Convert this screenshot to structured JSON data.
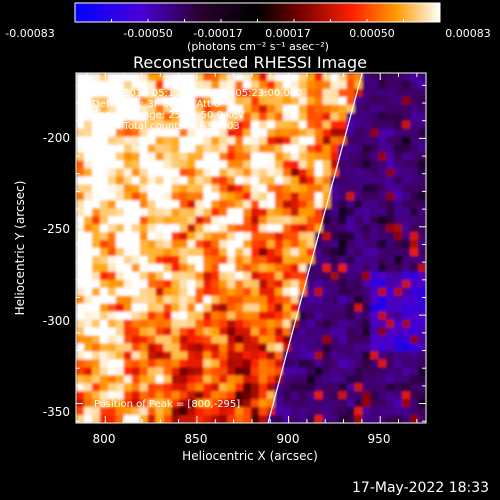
{
  "colorbar": {
    "tick_labels": [
      "-0.00083",
      "-0.00050",
      "-0.00017",
      "0.00017",
      "0.00050",
      "0.00083"
    ],
    "unit_label": "(photons cm⁻² s⁻¹ asec⁻²)",
    "range": [
      -0.00083,
      0.00083
    ],
    "colormap": [
      "#0000ff",
      "#5a00c8",
      "#1a0010",
      "#000000",
      "#7a0000",
      "#ff2000",
      "#ff9a00",
      "#ffffff"
    ]
  },
  "plot": {
    "title": "Reconstructed RHESSI Image",
    "info_lines": [
      "1-Oct-2014 05:17:00.000 to 05:23:00.000",
      "Detectors: 3F 6F 9F, Att 0",
      "Energy Range: 25.0 - 50.0 keV",
      "Clean    Total counts: 5.63E+03"
    ],
    "peak_label": "Position of Peak = [800,-295]",
    "xlabel": "Heliocentric X (arcsec)",
    "ylabel": "Heliocentric Y (arcsec)",
    "x_ticks": [
      "800",
      "850",
      "900",
      "950"
    ],
    "y_ticks": [
      "-200",
      "-250",
      "-300",
      "-350"
    ],
    "xlim": [
      784,
      975
    ],
    "ylim": [
      -361,
      -163
    ],
    "limb_color": "#ffffff"
  },
  "footer": {
    "timestamp": "17-May-2022 18:33"
  }
}
